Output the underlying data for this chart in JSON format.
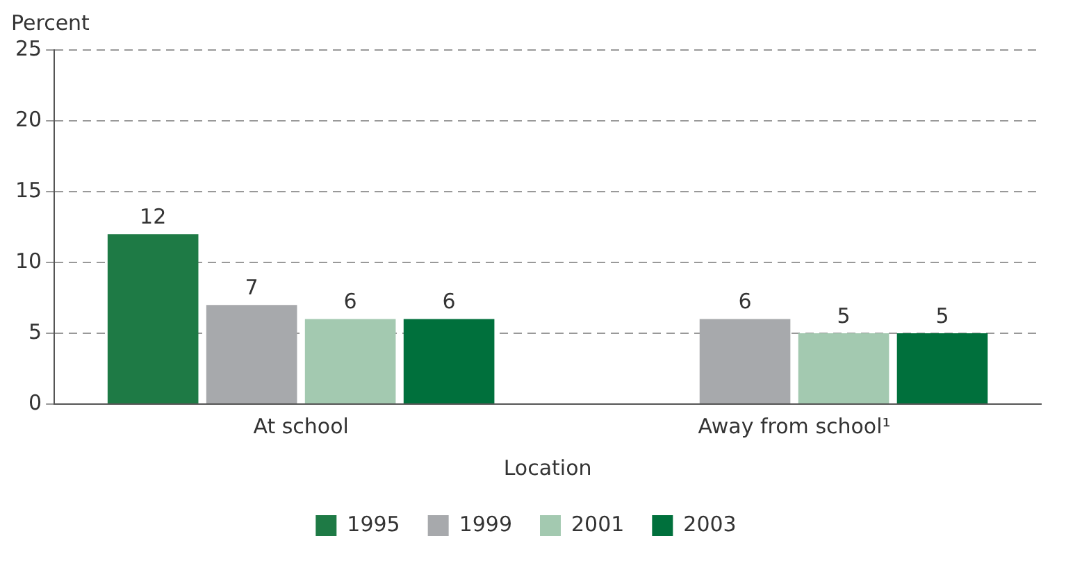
{
  "chart_data": {
    "type": "bar",
    "xlabel": "Location",
    "ylabel": "Percent",
    "categories": [
      "At school",
      "Away from school¹"
    ],
    "series": [
      {
        "name": "1995",
        "color": "#1e7a45",
        "values": [
          12,
          null
        ]
      },
      {
        "name": "1999",
        "color": "#a7a9ac",
        "values": [
          7,
          6
        ]
      },
      {
        "name": "2001",
        "color": "#a3c9b0",
        "values": [
          6,
          5
        ]
      },
      {
        "name": "2003",
        "color": "#00703c",
        "values": [
          6,
          5
        ]
      }
    ],
    "ylim": [
      0,
      25
    ],
    "yticks": [
      0,
      5,
      10,
      15,
      20,
      25
    ],
    "grid": "y",
    "legend": "bottom",
    "data_labels": true
  }
}
